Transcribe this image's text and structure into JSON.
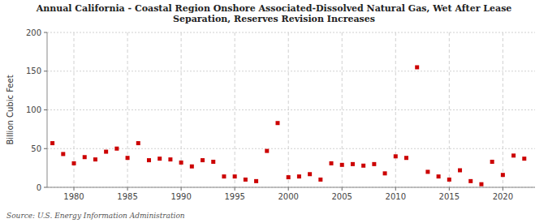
{
  "chart_data": {
    "type": "scatter",
    "title": "Annual California - Coastal Region Onshore Associated-Dissolved Natural Gas, Wet After Lease\nSeparation, Reserves Revision Increases",
    "ylabel": "Billion Cubic Feet",
    "annotations": [
      "Source: U.S. Energy Information Administration"
    ],
    "x": [
      1978,
      1979,
      1980,
      1981,
      1982,
      1983,
      1984,
      1985,
      1986,
      1987,
      1988,
      1989,
      1990,
      1991,
      1992,
      1993,
      1994,
      1995,
      1996,
      1997,
      1998,
      1999,
      2000,
      2001,
      2002,
      2003,
      2004,
      2005,
      2006,
      2007,
      2008,
      2009,
      2010,
      2011,
      2012,
      2013,
      2014,
      2015,
      2016,
      2017,
      2018,
      2019,
      2020,
      2021,
      2022
    ],
    "values": [
      57,
      43,
      31,
      39,
      36,
      46,
      50,
      38,
      57,
      35,
      37,
      36,
      32,
      27,
      35,
      33,
      14,
      14,
      10,
      8,
      47,
      83,
      13,
      14,
      17,
      10,
      31,
      29,
      30,
      28,
      30,
      18,
      40,
      38,
      155,
      20,
      14,
      10,
      22,
      8,
      4,
      33,
      16,
      41,
      37
    ],
    "color": "#cc0000",
    "marker": "square",
    "xlim": [
      1977.5,
      2023
    ],
    "ylim": [
      0,
      200
    ],
    "xticks": [
      1980,
      1985,
      1990,
      1995,
      2000,
      2005,
      2010,
      2015,
      2020
    ],
    "yticks": [
      0,
      50,
      100,
      150,
      200
    ],
    "grid": true
  }
}
